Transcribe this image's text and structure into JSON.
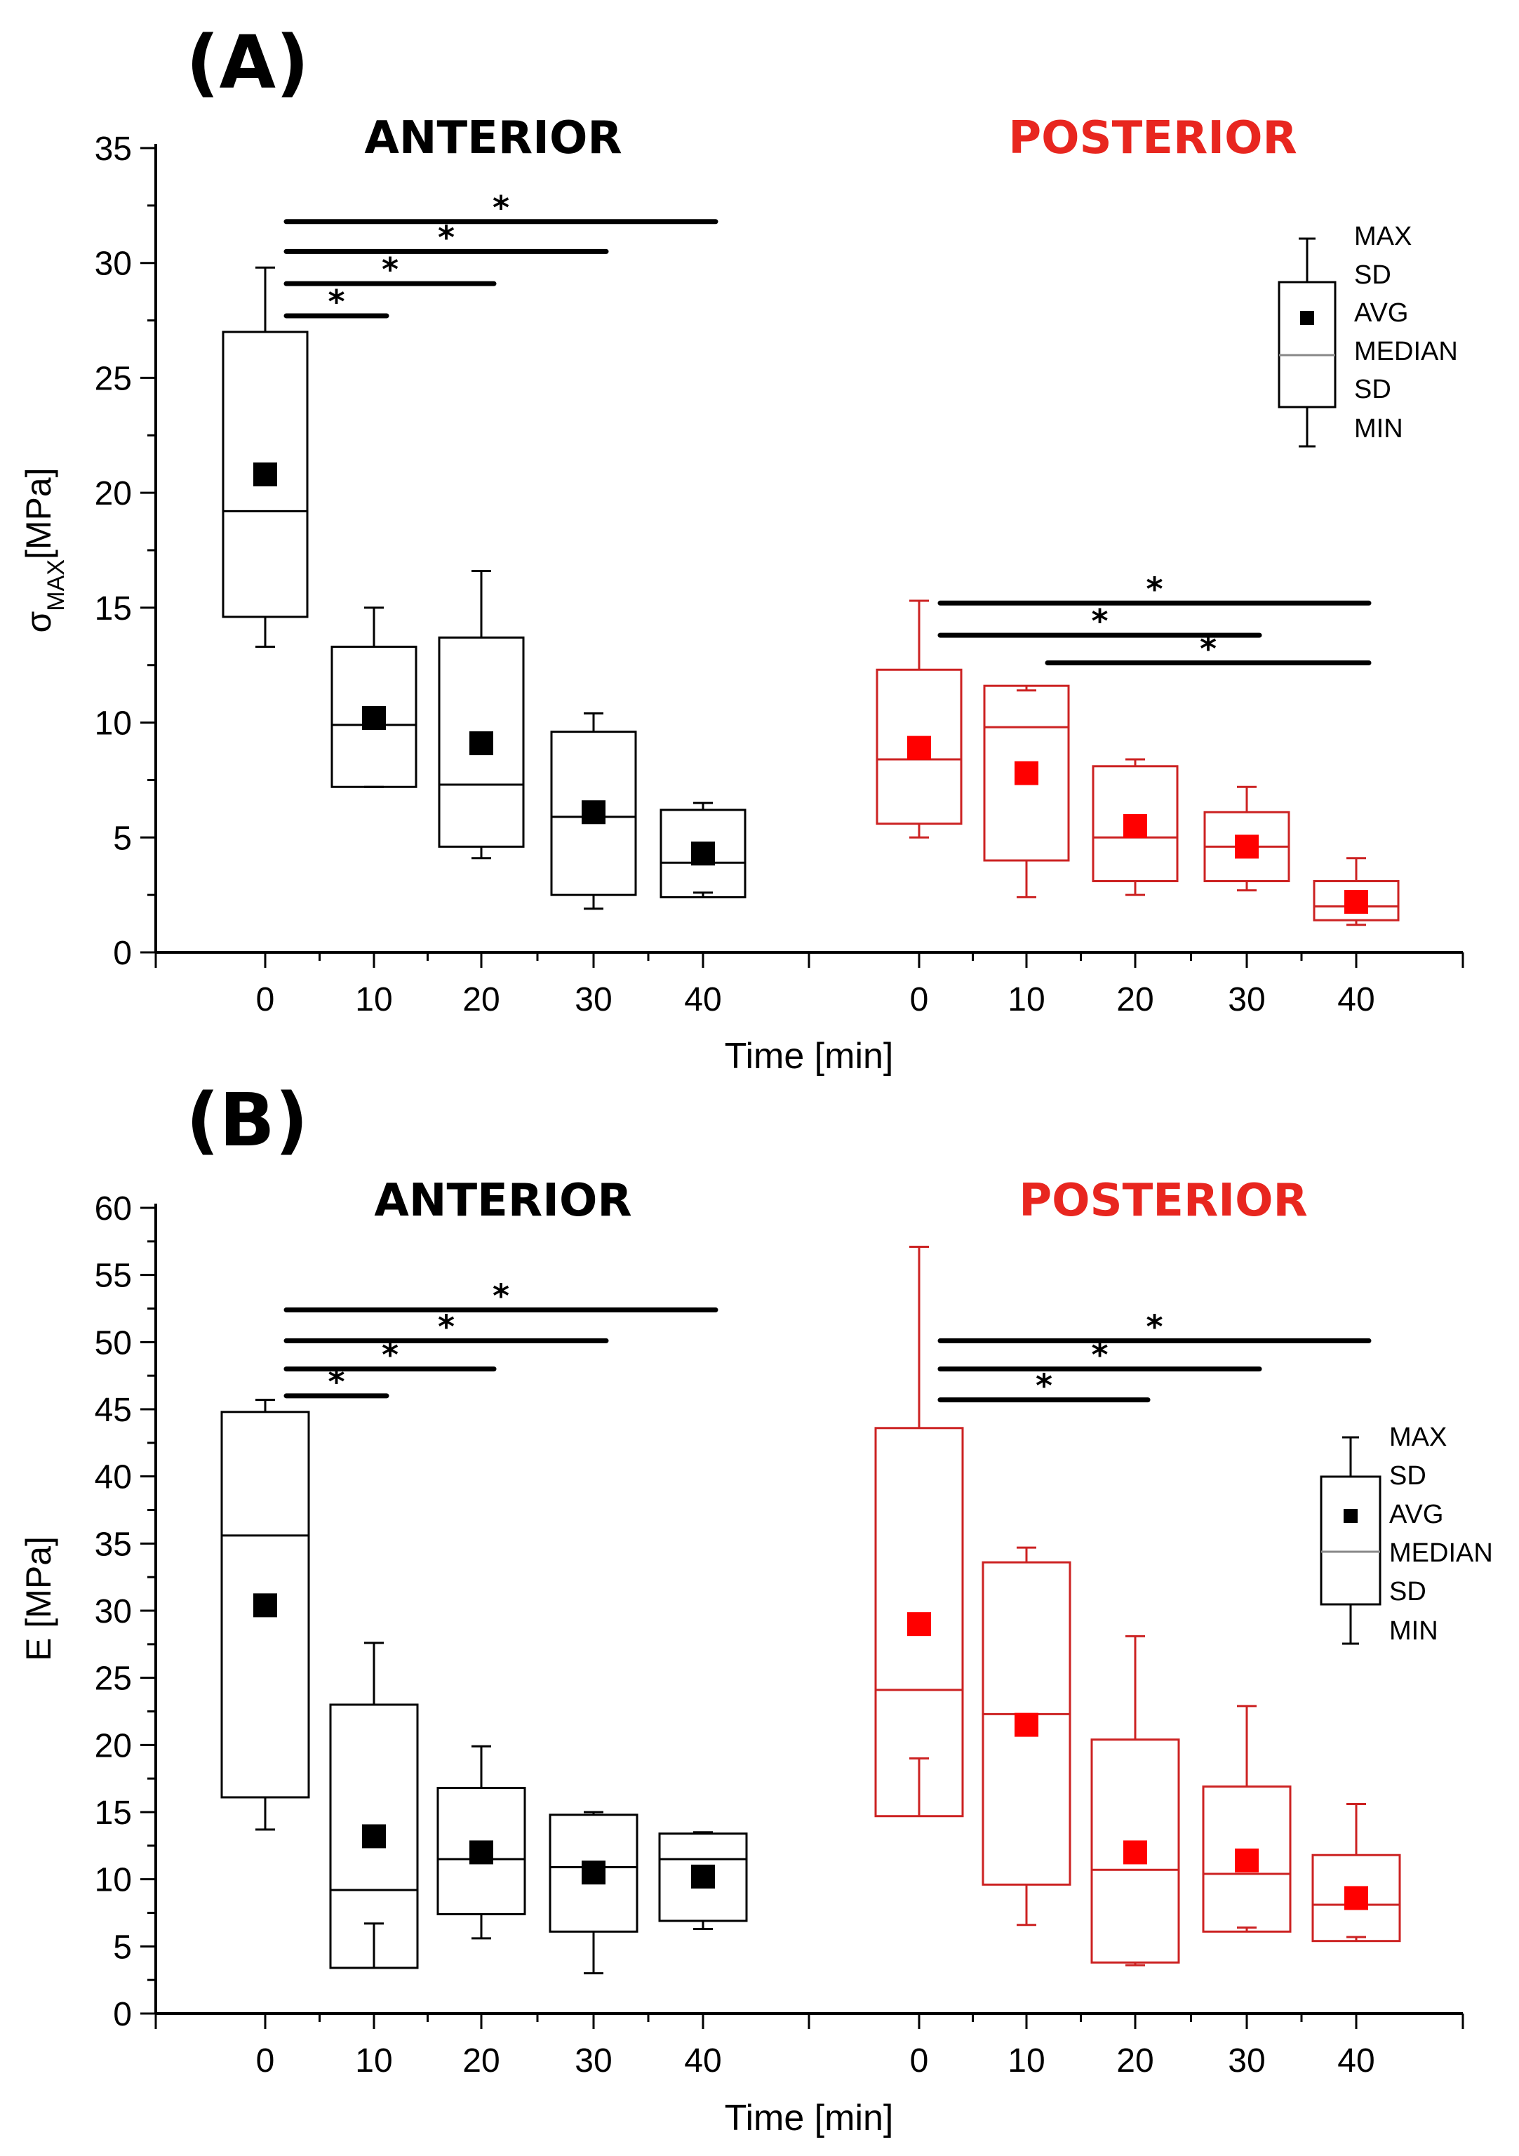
{
  "colors": {
    "anterior": "#000000",
    "posterior": "#cc2222",
    "posterior_marker": "#ff0000",
    "posterior_title": "#e8261f",
    "axis": "#000000"
  },
  "chart_data": [
    {
      "type": "boxplot",
      "panel_label": "(A)",
      "ylabel_main": "σ",
      "ylabel_sub": "MAX",
      "ylabel_rest": "[MPa]",
      "xlabel": "Time [min]",
      "ylim": [
        0,
        35
      ],
      "yticks": [
        0,
        5,
        10,
        15,
        20,
        25,
        30,
        35
      ],
      "categories": [
        "0",
        "10",
        "20",
        "30",
        "40"
      ],
      "groups": [
        {
          "name": "ANTERIOR",
          "color_key": "anterior",
          "boxes": [
            {
              "time": "0",
              "max": 29.8,
              "sd_hi": 27.0,
              "median": 19.2,
              "avg": 20.8,
              "sd_lo": 14.6,
              "min": 13.3
            },
            {
              "time": "10",
              "max": 15.0,
              "sd_hi": 13.3,
              "median": 9.9,
              "avg": 10.2,
              "sd_lo": 7.2,
              "min": 7.2
            },
            {
              "time": "20",
              "max": 16.6,
              "sd_hi": 13.7,
              "median": 7.3,
              "avg": 9.1,
              "sd_lo": 4.6,
              "min": 4.1
            },
            {
              "time": "30",
              "max": 10.4,
              "sd_hi": 9.6,
              "median": 5.9,
              "avg": 6.1,
              "sd_lo": 2.5,
              "min": 1.9
            },
            {
              "time": "40",
              "max": 6.5,
              "sd_hi": 6.2,
              "median": 3.9,
              "avg": 4.3,
              "sd_lo": 2.4,
              "min": 2.6
            }
          ],
          "significance": [
            {
              "from": "0",
              "to": "10",
              "y": 27.7,
              "label": "*"
            },
            {
              "from": "0",
              "to": "20",
              "y": 29.1,
              "label": "*"
            },
            {
              "from": "0",
              "to": "30",
              "y": 30.5,
              "label": "*"
            },
            {
              "from": "0",
              "to": "40",
              "y": 31.8,
              "label": "*"
            }
          ]
        },
        {
          "name": "POSTERIOR",
          "color_key": "posterior",
          "boxes": [
            {
              "time": "0",
              "max": 15.3,
              "sd_hi": 12.3,
              "median": 8.4,
              "avg": 8.9,
              "sd_lo": 5.6,
              "min": 5.0
            },
            {
              "time": "10",
              "max": 11.4,
              "sd_hi": 11.6,
              "median": 9.8,
              "avg": 7.8,
              "sd_lo": 4.0,
              "min": 2.4
            },
            {
              "time": "20",
              "max": 8.4,
              "sd_hi": 8.1,
              "median": 5.0,
              "avg": 5.5,
              "sd_lo": 3.1,
              "min": 2.5
            },
            {
              "time": "30",
              "max": 7.2,
              "sd_hi": 6.1,
              "median": 4.6,
              "avg": 4.6,
              "sd_lo": 3.1,
              "min": 2.7
            },
            {
              "time": "40",
              "max": 4.1,
              "sd_hi": 3.1,
              "median": 2.0,
              "avg": 2.2,
              "sd_lo": 1.4,
              "min": 1.2
            }
          ],
          "significance": [
            {
              "from": "0",
              "to": "40",
              "y": 15.2,
              "label": "*"
            },
            {
              "from": "0",
              "to": "30",
              "y": 13.8,
              "label": "*"
            },
            {
              "from": "10",
              "to": "40",
              "y": 12.6,
              "label": "*"
            }
          ]
        }
      ],
      "legend": {
        "placement": "top-right",
        "items": [
          "MAX",
          "SD",
          "AVG",
          "MEDIAN",
          "SD",
          "MIN"
        ]
      }
    },
    {
      "type": "boxplot",
      "panel_label": "(B)",
      "ylabel_main": "E [MPa]",
      "ylabel_sub": "",
      "ylabel_rest": "",
      "xlabel": "Time [min]",
      "ylim": [
        0,
        60
      ],
      "yticks": [
        0,
        5,
        10,
        15,
        20,
        25,
        30,
        35,
        40,
        45,
        50,
        55,
        60
      ],
      "categories": [
        "0",
        "10",
        "20",
        "30",
        "40"
      ],
      "groups": [
        {
          "name": "ANTERIOR",
          "color_key": "anterior",
          "boxes": [
            {
              "time": "0",
              "max": 45.7,
              "sd_hi": 44.8,
              "median": 35.6,
              "avg": 30.4,
              "sd_lo": 16.1,
              "min": 13.7
            },
            {
              "time": "10",
              "max": 27.6,
              "sd_hi": 23.0,
              "median": 9.2,
              "avg": 13.2,
              "sd_lo": 3.4,
              "min": 6.7
            },
            {
              "time": "20",
              "max": 19.9,
              "sd_hi": 16.8,
              "median": 11.5,
              "avg": 12.0,
              "sd_lo": 7.4,
              "min": 5.6
            },
            {
              "time": "30",
              "max": 15.0,
              "sd_hi": 14.8,
              "median": 10.9,
              "avg": 10.5,
              "sd_lo": 6.1,
              "min": 3.0
            },
            {
              "time": "40",
              "max": 13.5,
              "sd_hi": 13.4,
              "median": 11.5,
              "avg": 10.2,
              "sd_lo": 6.9,
              "min": 6.3
            }
          ],
          "significance": [
            {
              "from": "0",
              "to": "10",
              "y": 46.0,
              "label": "*"
            },
            {
              "from": "0",
              "to": "20",
              "y": 48.0,
              "label": "*"
            },
            {
              "from": "0",
              "to": "30",
              "y": 50.1,
              "label": "*"
            },
            {
              "from": "0",
              "to": "40",
              "y": 52.4,
              "label": "*"
            }
          ]
        },
        {
          "name": "POSTERIOR",
          "color_key": "posterior",
          "boxes": [
            {
              "time": "0",
              "max": 57.1,
              "sd_hi": 43.6,
              "median": 24.1,
              "avg": 29.0,
              "sd_lo": 14.7,
              "min": 19.0
            },
            {
              "time": "10",
              "max": 34.7,
              "sd_hi": 33.6,
              "median": 22.3,
              "avg": 21.5,
              "sd_lo": 9.6,
              "min": 6.6
            },
            {
              "time": "20",
              "max": 28.1,
              "sd_hi": 20.4,
              "median": 10.7,
              "avg": 12.0,
              "sd_lo": 3.8,
              "min": 3.6
            },
            {
              "time": "30",
              "max": 22.9,
              "sd_hi": 16.9,
              "median": 10.4,
              "avg": 11.4,
              "sd_lo": 6.1,
              "min": 6.4
            },
            {
              "time": "40",
              "max": 15.6,
              "sd_hi": 11.8,
              "median": 8.1,
              "avg": 8.6,
              "sd_lo": 5.4,
              "min": 5.7
            }
          ],
          "significance": [
            {
              "from": "0",
              "to": "20",
              "y": 45.7,
              "label": "*"
            },
            {
              "from": "0",
              "to": "30",
              "y": 48.0,
              "label": "*"
            },
            {
              "from": "0",
              "to": "40",
              "y": 50.1,
              "label": "*"
            }
          ]
        }
      ],
      "legend": {
        "placement": "right",
        "items": [
          "MAX",
          "SD",
          "AVG",
          "MEDIAN",
          "SD",
          "MIN"
        ]
      }
    }
  ]
}
